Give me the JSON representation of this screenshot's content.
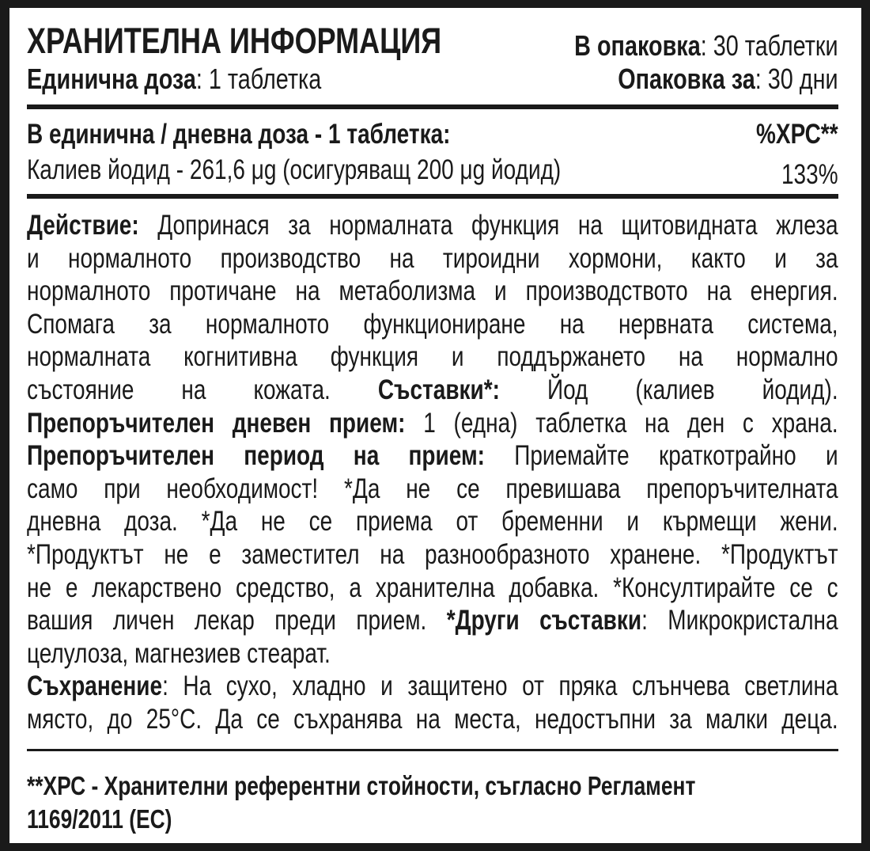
{
  "header": {
    "title": "ХРАНИТЕЛНА ИНФОРМАЦИЯ",
    "pack_label": "В опаковка",
    "pack_value": ": 30 таблетки",
    "dose_label": "Единична доза",
    "dose_value": ": 1 таблетка",
    "period_label": "Опаковка за",
    "period_value": ": 30 дни"
  },
  "table": {
    "heading": "В единична / дневна доза - 1 таблетка:",
    "rv_heading": "%ХРС**",
    "ingredient": "Калиев йодид - 261,6 μg (осигуряващ 200 μg йодид)",
    "ingredient_rv": "133%"
  },
  "body_lines": [
    [
      {
        "b": true,
        "t": "Действие: "
      },
      {
        "t": "Допринася за нормалната функция на щитовидната жлеза"
      }
    ],
    [
      {
        "t": "и нормалното производство на тироидни хормони, както и за"
      }
    ],
    [
      {
        "t": "нормалното протичане на метаболизма и производството на енергия."
      }
    ],
    [
      {
        "t": "Спомага за нормалното функциониране на нервната система,"
      }
    ],
    [
      {
        "t": "нормалната когнитивна функция и поддържането на нормално"
      }
    ],
    [
      {
        "t": "състояние на кожата. "
      },
      {
        "b": true,
        "t": "Съставки*: "
      },
      {
        "t": "Йод (калиев йодид)."
      }
    ],
    [
      {
        "b": true,
        "t": "Препоръчителен дневен прием: "
      },
      {
        "t": "1 (една) таблетка на ден с храна."
      }
    ],
    [
      {
        "b": true,
        "t": "Препоръчителен период на прием: "
      },
      {
        "t": "Приемайте краткотрайно и"
      }
    ],
    [
      {
        "t": "само при необходимост! *Да не се превишава препоръчителната"
      }
    ],
    [
      {
        "t": "дневна доза. *Да не се приема от бременни и кърмещи жени."
      }
    ],
    [
      {
        "t": "*Продуктът не е заместител на разнообразното хранене. *Продуктът"
      }
    ],
    [
      {
        "t": "не е лекарствено средство, а хранителна добавка.  *Консултирайте се с"
      }
    ],
    [
      {
        "t": "вашия личен лекар преди прием. "
      },
      {
        "b": true,
        "t": "*Други съставки"
      },
      {
        "t": ": Микрокристална"
      }
    ],
    [
      {
        "t": "целулоза, магнезиев стеарат.",
        "left": true
      }
    ],
    [
      {
        "b": true,
        "t": "Съхранение"
      },
      {
        "t": ": На сухо, хладно и защитено от пряка слънчева светлина"
      }
    ],
    [
      {
        "t": "място, до 25°C. Да се съхранява на места, недостъпни за малки деца."
      }
    ]
  ],
  "footer": {
    "line1": "**ХРС - Хранителни референтни стойности, съгласно Регламент",
    "line2": "1169/2011 (ЕС)"
  }
}
